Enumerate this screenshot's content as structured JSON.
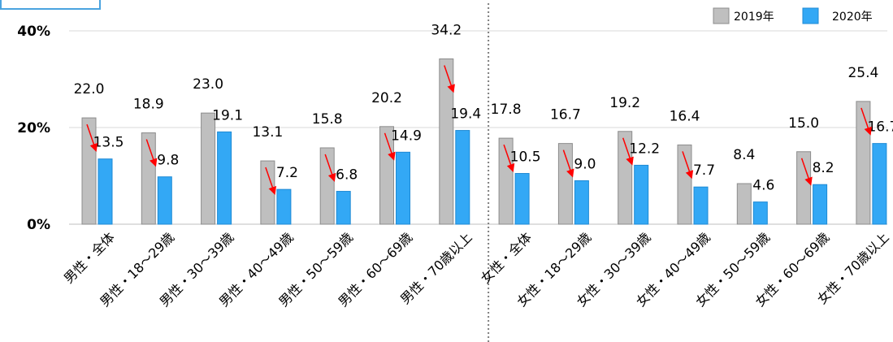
{
  "chart_data": {
    "type": "bar",
    "categories": [
      "男性・全体",
      "男性・18～29歳",
      "男性・30～39歳",
      "男性・40～49歳",
      "男性・50～59歳",
      "男性・60～69歳",
      "男性・70歳以上",
      "女性・全体",
      "女性・18～29歳",
      "女性・30～39歳",
      "女性・40～49歳",
      "女性・50～59歳",
      "女性・60～69歳",
      "女性・70歳以上"
    ],
    "series": [
      {
        "name": "2019年",
        "color": "#bfbfbf",
        "values": [
          22.0,
          18.9,
          23.0,
          13.1,
          15.8,
          20.2,
          34.2,
          17.8,
          16.7,
          19.2,
          16.4,
          8.4,
          15.0,
          25.4
        ]
      },
      {
        "name": "2020年",
        "color": "#33a8f5",
        "values": [
          13.5,
          9.8,
          19.1,
          7.2,
          6.8,
          14.9,
          19.4,
          10.5,
          9.0,
          12.2,
          7.7,
          4.6,
          8.2,
          16.7
        ]
      }
    ],
    "y_ticks": [
      "0%",
      "20%",
      "40%"
    ],
    "ylim": [
      0,
      40
    ],
    "grid": true,
    "legend_position": "top-right",
    "decrease_arrows": [
      0,
      1,
      3,
      4,
      5,
      6,
      7,
      8,
      9,
      10,
      12,
      13
    ],
    "arrow_color": "#ff0000",
    "divider_after_category": 6
  }
}
